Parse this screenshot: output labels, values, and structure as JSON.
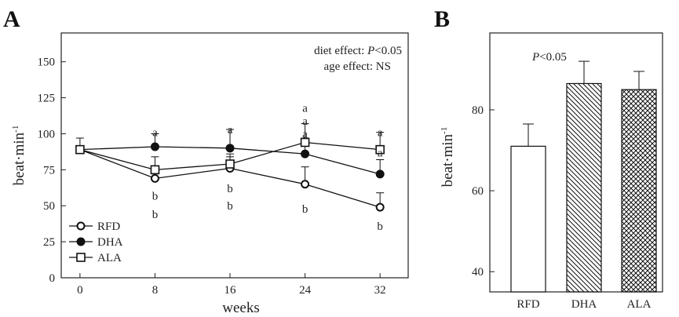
{
  "figure": {
    "panel_a_label": "A",
    "panel_b_label": "B"
  },
  "chart_data": [
    {
      "type": "line",
      "panel": "A",
      "xlabel": "weeks",
      "ylabel": "beat·min",
      "ylabel_superscript": "-1",
      "x": [
        0,
        8,
        16,
        24,
        32
      ],
      "xticks": [
        "0",
        "8",
        "16",
        "24",
        "32"
      ],
      "yticks": [
        "0",
        "25",
        "50",
        "75",
        "100",
        "125",
        "150"
      ],
      "xlim": [
        -2,
        35
      ],
      "ylim": [
        0,
        170
      ],
      "annotations": {
        "diet_prefix": "diet effect: ",
        "diet_p": "P",
        "diet_suffix": "<0.05",
        "age": "age effect: NS"
      },
      "legend_position": "bottom-left",
      "series": [
        {
          "name": "RFD",
          "marker": "open-circle",
          "values": [
            89,
            69,
            76,
            65,
            49
          ],
          "errors": [
            0,
            7,
            8,
            12,
            10
          ]
        },
        {
          "name": "DHA",
          "marker": "filled-circle",
          "values": [
            89,
            91,
            90,
            86,
            72
          ],
          "errors": [
            0,
            9,
            13,
            11,
            10
          ]
        },
        {
          "name": "ALA",
          "marker": "open-square",
          "values": [
            89,
            75,
            79,
            94,
            89
          ],
          "errors": [
            8,
            9,
            7,
            13,
            12
          ]
        }
      ],
      "significance_labels": [
        {
          "x": 8,
          "y": 101,
          "text": "a"
        },
        {
          "x": 8,
          "y": 57,
          "text": "b"
        },
        {
          "x": 8,
          "y": 44,
          "text": "b"
        },
        {
          "x": 16,
          "y": 103,
          "text": "a"
        },
        {
          "x": 16,
          "y": 62,
          "text": "b"
        },
        {
          "x": 16,
          "y": 50,
          "text": "b"
        },
        {
          "x": 24,
          "y": 118,
          "text": "a"
        },
        {
          "x": 24,
          "y": 109,
          "text": "a"
        },
        {
          "x": 24,
          "y": 100,
          "text": "a"
        },
        {
          "x": 24,
          "y": 48,
          "text": "b"
        },
        {
          "x": 32,
          "y": 101,
          "text": "a"
        },
        {
          "x": 32,
          "y": 87,
          "text": "a"
        },
        {
          "x": 32,
          "y": 36,
          "text": "b"
        }
      ]
    },
    {
      "type": "bar",
      "panel": "B",
      "categories": [
        "RFD",
        "DHA",
        "ALA"
      ],
      "values": [
        71,
        86.5,
        85
      ],
      "errors": [
        5.5,
        5.5,
        4.5
      ],
      "fills": [
        "white",
        "diagonal-hatch",
        "cross-hatch"
      ],
      "ylabel": "beat·min",
      "ylabel_superscript": "-1",
      "yticks": [
        "40",
        "60",
        "80"
      ],
      "ylim": [
        35,
        99
      ],
      "annotation_p": "P",
      "annotation_value": "<0.05"
    }
  ]
}
